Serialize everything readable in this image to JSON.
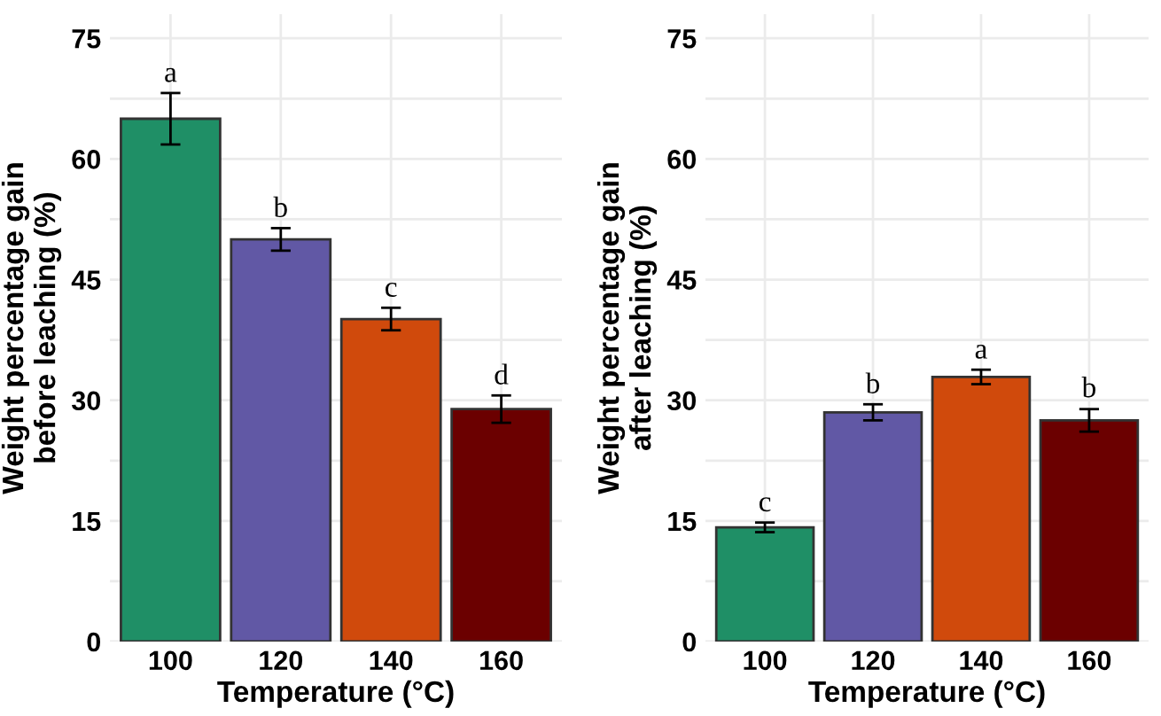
{
  "chart_data": [
    {
      "type": "bar",
      "xlabel": "Temperature (°C)",
      "ylabel": "Weight percentage gain\nbefore leaching (%)",
      "categories": [
        "100",
        "120",
        "140",
        "160"
      ],
      "values": [
        65.0,
        50.0,
        40.1,
        28.9
      ],
      "colors": [
        "#1f8f66",
        "#6158a5",
        "#d04a0c",
        "#6b0000"
      ],
      "errors": [
        3.2,
        1.4,
        1.4,
        1.7
      ],
      "ylim": [
        0,
        78
      ],
      "yticks": [
        0,
        {
          "value": 7.5,
          "label": null
        },
        15,
        {
          "value": 22.5,
          "label": null
        },
        30,
        {
          "value": 37.5,
          "label": null
        },
        45,
        {
          "value": 52.5,
          "label": null
        },
        60,
        {
          "value": 67.5,
          "label": null
        },
        75
      ],
      "grid": true,
      "annotations": [
        {
          "text": "a",
          "x": "100",
          "y": 68.2
        },
        {
          "text": "b",
          "x": "120",
          "y": 51.4
        },
        {
          "text": "c",
          "x": "140",
          "y": 41.5
        },
        {
          "text": "d",
          "x": "160",
          "y": 30.6
        }
      ]
    },
    {
      "type": "bar",
      "xlabel": "Temperature (°C)",
      "ylabel": "Weight percentage gain\nafter leaching (%)",
      "categories": [
        "100",
        "120",
        "140",
        "160"
      ],
      "values": [
        14.2,
        28.5,
        32.9,
        27.5
      ],
      "colors": [
        "#1f8f66",
        "#6158a5",
        "#d04a0c",
        "#6b0000"
      ],
      "errors": [
        0.6,
        1.0,
        0.9,
        1.4
      ],
      "ylim": [
        0,
        78
      ],
      "yticks": [
        0,
        {
          "value": 7.5,
          "label": null
        },
        15,
        {
          "value": 22.5,
          "label": null
        },
        30,
        {
          "value": 37.5,
          "label": null
        },
        45,
        {
          "value": 52.5,
          "label": null
        },
        60,
        {
          "value": 67.5,
          "label": null
        },
        75
      ],
      "grid": true,
      "annotations": [
        {
          "text": "c",
          "x": "100",
          "y": 14.8
        },
        {
          "text": "b",
          "x": "120",
          "y": 29.5
        },
        {
          "text": "a",
          "x": "140",
          "y": 33.8
        },
        {
          "text": "b",
          "x": "160",
          "y": 29.0
        }
      ]
    }
  ]
}
